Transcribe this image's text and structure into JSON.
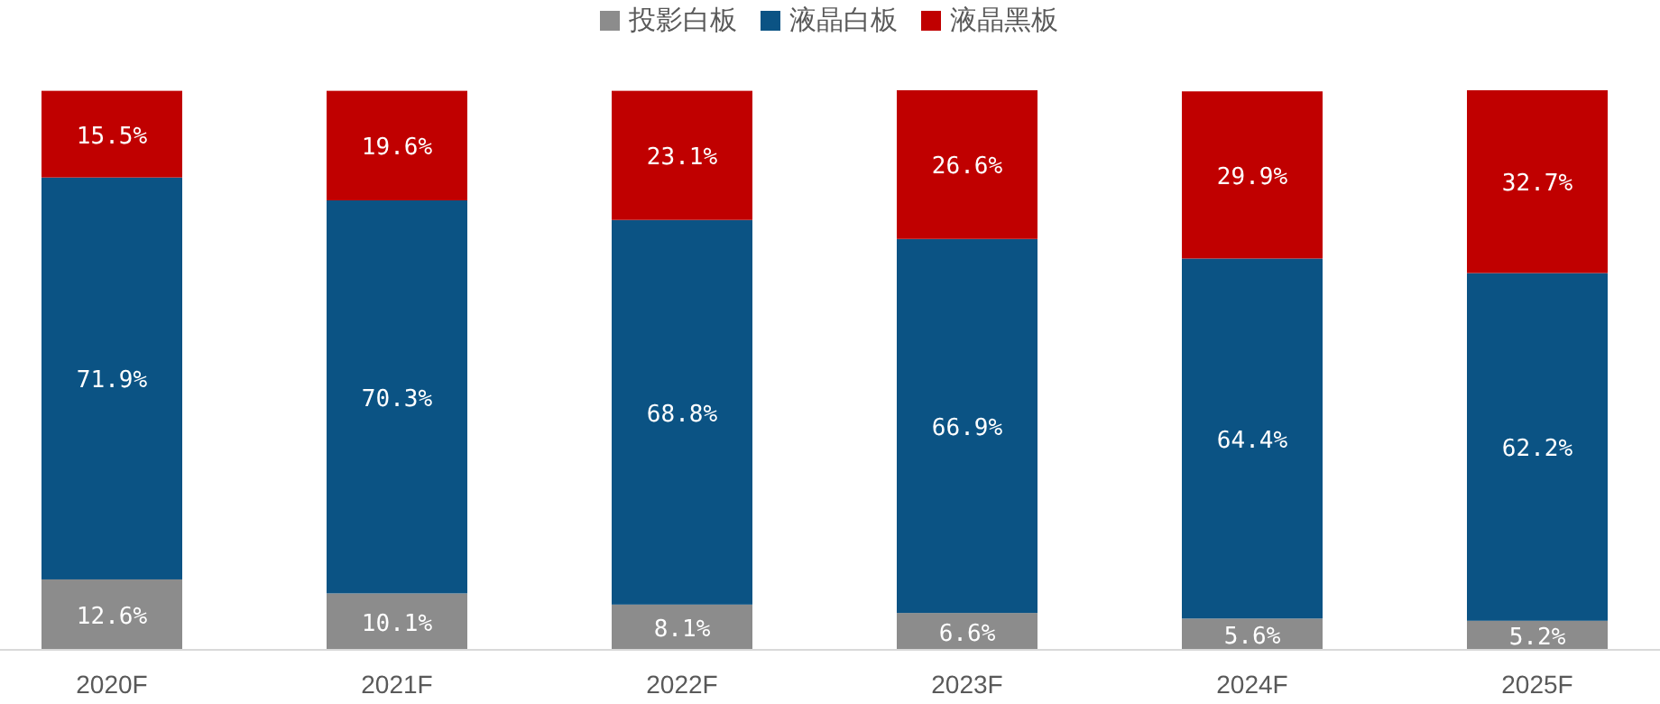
{
  "chart_data": {
    "type": "bar",
    "stacked": true,
    "legend": "top",
    "tick_labels": "x",
    "categories": [
      "2020F",
      "2021F",
      "2022F",
      "2023F",
      "2024F",
      "2025F"
    ],
    "series": [
      {
        "name": "投影白板",
        "color": "#8c8c8c",
        "values": [
          12.6,
          10.1,
          8.1,
          6.6,
          5.6,
          5.2
        ],
        "value_labels": [
          "12.6%",
          "10.1%",
          "8.1%",
          "6.6%",
          "5.6%",
          "5.2%"
        ]
      },
      {
        "name": "液晶白板",
        "color": "#0b5384",
        "values": [
          71.9,
          70.3,
          68.8,
          66.9,
          64.4,
          62.2
        ],
        "value_labels": [
          "71.9%",
          "70.3%",
          "68.8%",
          "66.9%",
          "64.4%",
          "62.2%"
        ]
      },
      {
        "name": "液晶黑板",
        "color": "#c00000",
        "values": [
          15.5,
          19.6,
          23.1,
          26.6,
          29.9,
          32.7
        ],
        "value_labels": [
          "15.5%",
          "19.6%",
          "23.1%",
          "26.6%",
          "29.9%",
          "32.7%"
        ]
      }
    ]
  }
}
